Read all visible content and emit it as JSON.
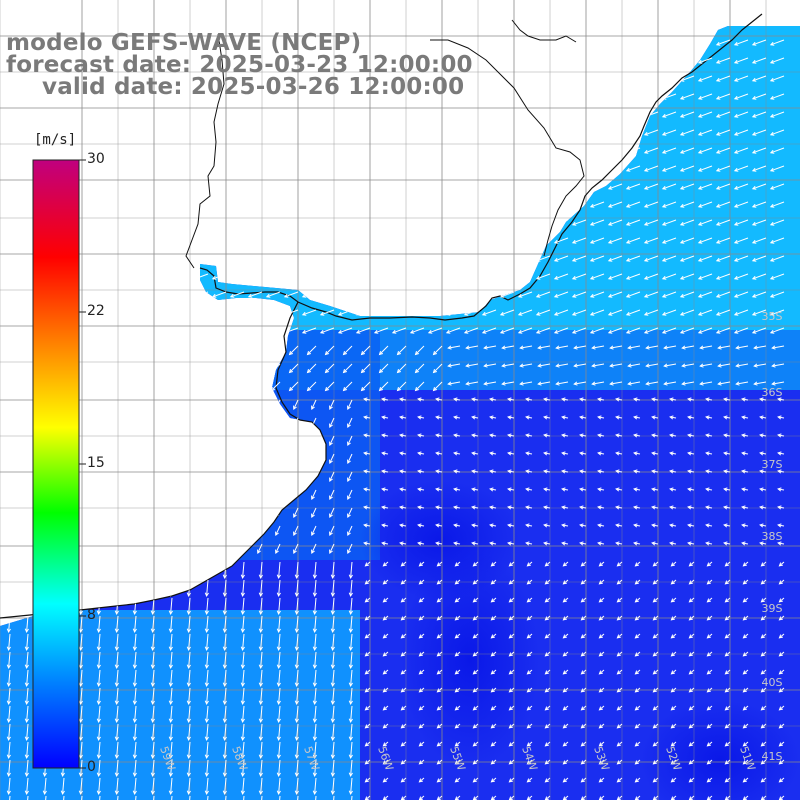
{
  "title": {
    "model": "modelo GEFS-WAVE (NCEP)",
    "forecast": "forecast date: 2025-03-23 12:00:00",
    "valid": "valid date: 2025-03-26 12:00:00"
  },
  "colorbar": {
    "unit": "[m/s]",
    "ticks": [
      "30",
      "22",
      "15",
      "8",
      "0"
    ],
    "colors": [
      "#0000ff",
      "#0080ff",
      "#00ffff",
      "#00ff00",
      "#ffff00",
      "#ff8000",
      "#ff0000",
      "#c0007f"
    ]
  },
  "map": {
    "lat_labels": [
      "35S",
      "36S",
      "37S",
      "38S",
      "39S",
      "40S",
      "41S"
    ],
    "lon_labels": [
      "59W",
      "58W",
      "57W",
      "56W",
      "55W",
      "54W",
      "53W",
      "52W",
      "51W"
    ],
    "land_color": "#ffffff",
    "ocean_near_coast_color": "#13c2ff",
    "ocean_far_color": "#1a2ef0",
    "arrow_color": "#ffffff"
  }
}
